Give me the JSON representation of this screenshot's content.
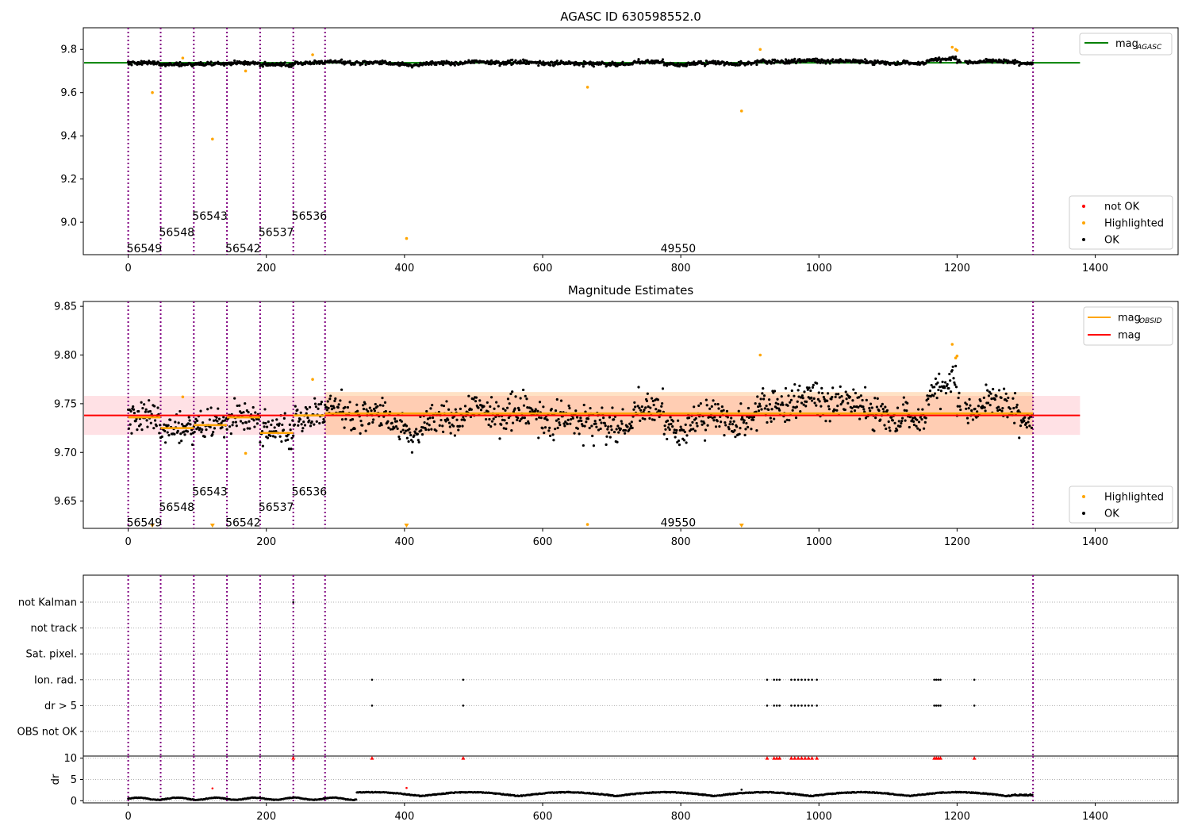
{
  "chart_data": [
    {
      "type": "scatter",
      "panel": "top",
      "title": "AGASC ID 630598552.0",
      "xlim": [
        -65,
        1520
      ],
      "ylim": [
        8.85,
        9.9
      ],
      "xticks": [
        0,
        200,
        400,
        600,
        800,
        1000,
        1200,
        1400
      ],
      "yticks": [
        9.0,
        9.2,
        9.4,
        9.6,
        9.8
      ],
      "ytick_labels": [
        "9.0",
        "9.2",
        "9.4",
        "9.6",
        "9.8"
      ],
      "grid": false,
      "obsid_boundaries": [
        0,
        47,
        95,
        143,
        191,
        239,
        285,
        1310
      ],
      "obsid_labels": [
        {
          "text": "56549",
          "x": 0,
          "y": 8.88
        },
        {
          "text": "56548",
          "x": 47,
          "y": 8.955
        },
        {
          "text": "56543",
          "x": 95,
          "y": 9.03
        },
        {
          "text": "56542",
          "x": 143,
          "y": 8.88
        },
        {
          "text": "56537",
          "x": 191,
          "y": 8.955
        },
        {
          "text": "56536",
          "x": 239,
          "y": 9.03
        },
        {
          "text": "49550",
          "x": 773,
          "y": 8.88
        }
      ],
      "reference_line": {
        "name": "mag_AGASC",
        "y": 9.738,
        "x": [
          -65,
          1378
        ],
        "color": "#008000"
      },
      "mean_level": 9.738,
      "legend_top": [
        {
          "label": "mag",
          "sub": "AGASC",
          "kind": "line",
          "color": "#008000"
        }
      ],
      "legend_bottom": [
        {
          "label": "not OK",
          "kind": "dot",
          "color": "#ff0000"
        },
        {
          "label": "Highlighted",
          "kind": "dot",
          "color": "#ffa500"
        },
        {
          "label": "OK",
          "kind": "dot",
          "color": "#000000"
        }
      ],
      "highlighted_points": [
        [
          35,
          9.6
        ],
        [
          79,
          9.76
        ],
        [
          122,
          9.385
        ],
        [
          170,
          9.7
        ],
        [
          267,
          9.775
        ],
        [
          403,
          8.925
        ],
        [
          665,
          9.625
        ],
        [
          888,
          9.515
        ],
        [
          915,
          9.8
        ],
        [
          1193,
          9.81
        ],
        [
          1198,
          9.8
        ],
        [
          1200,
          9.795
        ]
      ]
    },
    {
      "type": "scatter",
      "panel": "middle",
      "title": "Magnitude Estimates",
      "xlim": [
        -65,
        1520
      ],
      "ylim": [
        9.622,
        9.855
      ],
      "xticks": [
        0,
        200,
        400,
        600,
        800,
        1000,
        1200,
        1400
      ],
      "yticks": [
        9.65,
        9.7,
        9.75,
        9.8,
        9.85
      ],
      "ytick_labels": [
        "9.65",
        "9.70",
        "9.75",
        "9.80",
        "9.85"
      ],
      "grid": false,
      "obsid_boundaries": [
        0,
        47,
        95,
        143,
        191,
        239,
        285,
        1310
      ],
      "obsid_labels": [
        {
          "text": "56549",
          "x": 0,
          "y": 9.628
        },
        {
          "text": "56548",
          "x": 47,
          "y": 9.644
        },
        {
          "text": "56543",
          "x": 95,
          "y": 9.66
        },
        {
          "text": "56542",
          "x": 143,
          "y": 9.628
        },
        {
          "text": "56537",
          "x": 191,
          "y": 9.644
        },
        {
          "text": "56536",
          "x": 239,
          "y": 9.66
        },
        {
          "text": "49550",
          "x": 773,
          "y": 9.628
        }
      ],
      "mag_line": {
        "y": 9.738,
        "color": "#ff0000",
        "band": [
          9.718,
          9.758
        ],
        "x": [
          -65,
          1378
        ]
      },
      "mag_obsid_segments": [
        {
          "x": [
            0,
            47
          ],
          "y": 9.736
        },
        {
          "x": [
            47,
            95
          ],
          "y": 9.725
        },
        {
          "x": [
            95,
            143
          ],
          "y": 9.728
        },
        {
          "x": [
            143,
            191
          ],
          "y": 9.736
        },
        {
          "x": [
            191,
            239
          ],
          "y": 9.72
        },
        {
          "x": [
            239,
            285
          ],
          "y": 9.738
        },
        {
          "x": [
            285,
            1310
          ],
          "y": 9.74,
          "band": [
            9.718,
            9.762
          ]
        }
      ],
      "legend_top": [
        {
          "label": "mag",
          "sub": "OBSID",
          "kind": "line",
          "color": "#ffa500"
        },
        {
          "label": "mag",
          "sub": "",
          "kind": "line",
          "color": "#ff0000"
        }
      ],
      "legend_bottom": [
        {
          "label": "Highlighted",
          "kind": "dot",
          "color": "#ffa500"
        },
        {
          "label": "OK",
          "kind": "dot",
          "color": "#000000"
        }
      ],
      "highlighted_points": [
        [
          79,
          9.757
        ],
        [
          170,
          9.699
        ],
        [
          267,
          9.775
        ],
        [
          665,
          9.626
        ],
        [
          915,
          9.8
        ],
        [
          1193,
          9.811
        ],
        [
          1198,
          9.797
        ],
        [
          1200,
          9.799
        ]
      ],
      "offscale_markers": [
        35,
        122,
        403,
        888
      ]
    },
    {
      "type": "scatter",
      "panel": "flags",
      "xlim": [
        -65,
        1520
      ],
      "category_labels": [
        "not Kalman",
        "not track",
        "Sat. pixel.",
        "Ion. rad.",
        "dr > 5",
        "OBS not OK"
      ],
      "obsid_boundaries": [
        0,
        47,
        95,
        143,
        191,
        239,
        285,
        1310
      ],
      "grid": true,
      "flagged_points": {
        "not Kalman": [
          239
        ],
        "Ion. rad.": [
          353,
          485,
          925,
          935,
          939,
          943,
          960,
          965,
          970,
          975,
          980,
          985,
          990,
          997,
          1167,
          1170,
          1173,
          1176,
          1225
        ],
        "dr > 5": [
          353,
          485,
          925,
          935,
          939,
          943,
          960,
          965,
          970,
          975,
          980,
          985,
          990,
          997,
          1167,
          1170,
          1173,
          1176,
          1225
        ]
      }
    },
    {
      "type": "scatter",
      "panel": "dr",
      "xlim": [
        -65,
        1520
      ],
      "ylim": [
        -0.5,
        10.5
      ],
      "ylabel": "dr",
      "yticks": [
        0,
        5,
        10
      ],
      "ytick_labels": [
        "0",
        "5",
        "10"
      ],
      "xticks": [
        0,
        200,
        400,
        600,
        800,
        1000,
        1200,
        1400
      ],
      "grid": true,
      "clipped_markers": [
        239,
        353,
        485,
        925,
        935,
        939,
        943,
        960,
        965,
        970,
        975,
        980,
        985,
        990,
        997,
        1167,
        1170,
        1173,
        1176,
        1225
      ],
      "red_points": [
        [
          122,
          2.9
        ],
        [
          403,
          3.0
        ]
      ],
      "outlier_points": [
        [
          888,
          2.6
        ]
      ]
    }
  ]
}
